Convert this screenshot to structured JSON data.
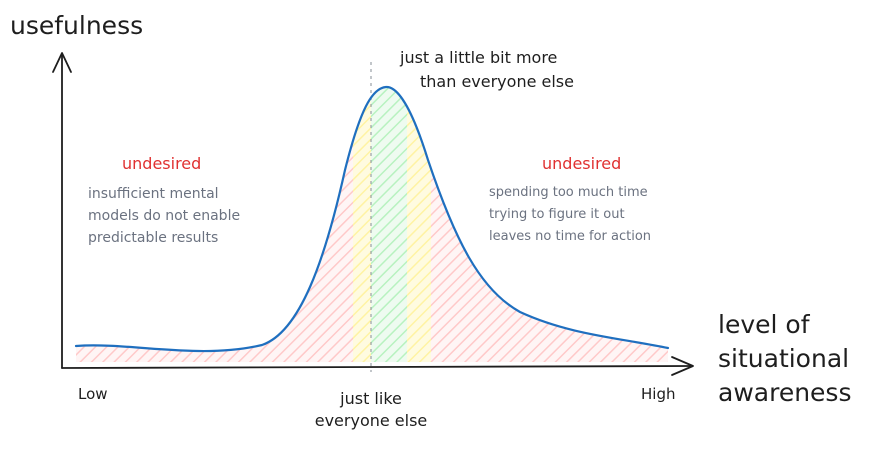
{
  "y_axis_label": "usefulness",
  "x_axis_label": [
    "level of",
    "situational",
    "awareness"
  ],
  "x_ticks": {
    "low": "Low",
    "middle": [
      "just like",
      "everyone else"
    ],
    "high": "High"
  },
  "peak_annotation": [
    "just a little bit more",
    "than everyone else"
  ],
  "left_region": {
    "title": "undesired",
    "description": [
      "insufficient mental",
      "models do not enable",
      "predictable results"
    ]
  },
  "right_region": {
    "title": "undesired",
    "description": [
      "spending too much time",
      "trying to figure it out",
      "leaves no time for action"
    ]
  },
  "colors": {
    "curve": "#1f6fbf",
    "undesired": "#e03131",
    "annotation_gray": "#6b7280",
    "red_zone": "#ffc9c9",
    "yellow_zone": "#fff3a3",
    "green_zone": "#b8f2c0"
  }
}
